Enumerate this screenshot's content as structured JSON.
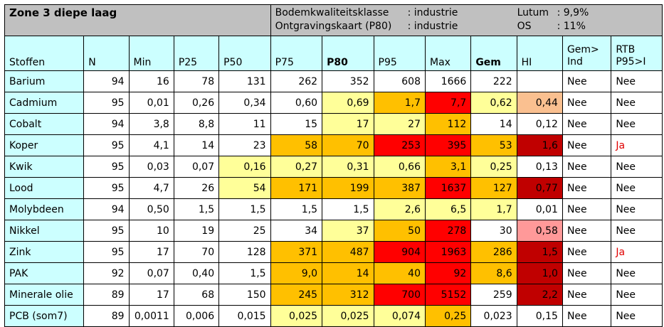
{
  "title": "Zone 3 diepe laag",
  "info": {
    "line1": {
      "label": "Bodemkwaliteitsklasse",
      "value": ": industrie",
      "label2": "Lutum",
      "value2": ": 9,9%"
    },
    "line2": {
      "label": "Ontgravingskaart (P80)",
      "value": ": industrie",
      "label2": "OS",
      "value2": ": 11%"
    }
  },
  "colors": {
    "light_yellow": "#ffff99",
    "orange": "#ffc000",
    "red": "#ff0000",
    "dark_red": "#c00000",
    "peach": "#fac090",
    "pink": "#ff9999",
    "cyan": "#ccffff",
    "grey": "#c0c0c0"
  },
  "headers": [
    "Stoffen",
    "N",
    "Min",
    "P25",
    "P50",
    "P75",
    "P80",
    "P95",
    "Max",
    "Gem",
    "HI",
    "Gem>\nInd",
    "RTB\nP95>I"
  ],
  "rows": [
    {
      "name": "Barium",
      "vals": [
        "94",
        "16",
        "78",
        "131",
        "262",
        "352",
        "608",
        "1666",
        "222",
        "",
        "Nee",
        "Nee"
      ],
      "fills": [
        "",
        "",
        "",
        "",
        "",
        "",
        "",
        "",
        "",
        "",
        "",
        ""
      ]
    },
    {
      "name": "Cadmium",
      "vals": [
        "95",
        "0,01",
        "0,26",
        "0,34",
        "0,60",
        "0,69",
        "1,7",
        "7,7",
        "0,62",
        "0,44",
        "Nee",
        "Nee"
      ],
      "fills": [
        "",
        "",
        "",
        "",
        "",
        "ly",
        "or",
        "rd",
        "ly",
        "pe",
        "",
        ""
      ]
    },
    {
      "name": "Cobalt",
      "vals": [
        "94",
        "3,8",
        "8,8",
        "11",
        "15",
        "17",
        "27",
        "112",
        "14",
        "0,12",
        "Nee",
        "Nee"
      ],
      "fills": [
        "",
        "",
        "",
        "",
        "",
        "ly",
        "ly",
        "or",
        "",
        "",
        "",
        ""
      ]
    },
    {
      "name": "Koper",
      "vals": [
        "95",
        "4,1",
        "14",
        "23",
        "58",
        "70",
        "253",
        "395",
        "53",
        "1,6",
        "Nee",
        "Ja"
      ],
      "fills": [
        "",
        "",
        "",
        "",
        "or",
        "or",
        "rd",
        "rd",
        "or",
        "dr",
        "",
        ""
      ]
    },
    {
      "name": "Kwik",
      "vals": [
        "95",
        "0,03",
        "0,07",
        "0,16",
        "0,27",
        "0,31",
        "0,66",
        "3,1",
        "0,25",
        "0,13",
        "Nee",
        "Nee"
      ],
      "fills": [
        "",
        "",
        "",
        "ly",
        "ly",
        "ly",
        "ly",
        "or",
        "ly",
        "",
        "",
        ""
      ]
    },
    {
      "name": "Lood",
      "vals": [
        "95",
        "4,7",
        "26",
        "54",
        "171",
        "199",
        "387",
        "1637",
        "127",
        "0,77",
        "Nee",
        "Nee"
      ],
      "fills": [
        "",
        "",
        "",
        "ly",
        "or",
        "or",
        "or",
        "rd",
        "or",
        "dr",
        "",
        ""
      ]
    },
    {
      "name": "Molybdeen",
      "vals": [
        "94",
        "0,50",
        "1,5",
        "1,5",
        "1,5",
        "1,5",
        "2,6",
        "6,5",
        "1,7",
        "0,01",
        "Nee",
        "Nee"
      ],
      "fills": [
        "",
        "",
        "",
        "",
        "",
        "",
        "ly",
        "ly",
        "ly",
        "",
        "",
        ""
      ]
    },
    {
      "name": "Nikkel",
      "vals": [
        "95",
        "10",
        "19",
        "25",
        "34",
        "37",
        "50",
        "278",
        "30",
        "0,58",
        "Nee",
        "Nee"
      ],
      "fills": [
        "",
        "",
        "",
        "",
        "",
        "ly",
        "or",
        "rd",
        "",
        "pk",
        "",
        ""
      ]
    },
    {
      "name": "Zink",
      "vals": [
        "95",
        "17",
        "70",
        "128",
        "371",
        "487",
        "904",
        "1963",
        "286",
        "1,5",
        "Nee",
        "Ja"
      ],
      "fills": [
        "",
        "",
        "",
        "",
        "or",
        "or",
        "rd",
        "rd",
        "or",
        "dr",
        "",
        ""
      ]
    },
    {
      "name": "PAK",
      "vals": [
        "92",
        "0,07",
        "0,40",
        "1,5",
        "9,0",
        "14",
        "40",
        "92",
        "8,6",
        "1,0",
        "Nee",
        "Nee"
      ],
      "fills": [
        "",
        "",
        "",
        "",
        "or",
        "or",
        "or",
        "rd",
        "or",
        "dr",
        "",
        ""
      ]
    },
    {
      "name": "Minerale olie",
      "vals": [
        "89",
        "17",
        "68",
        "150",
        "245",
        "312",
        "700",
        "5152",
        "259",
        "2,2",
        "Nee",
        "Nee"
      ],
      "fills": [
        "",
        "",
        "",
        "",
        "or",
        "or",
        "rd",
        "rd",
        "",
        "dr",
        "",
        ""
      ]
    },
    {
      "name": "PCB (som7)",
      "vals": [
        "89",
        "0,0011",
        "0,006",
        "0,015",
        "0,025",
        "0,025",
        "0,074",
        "0,25",
        "0,023",
        "0,15",
        "Nee",
        "Nee"
      ],
      "fills": [
        "",
        "",
        "",
        "",
        "ly",
        "ly",
        "ly",
        "or",
        "",
        "",
        "",
        ""
      ]
    }
  ]
}
